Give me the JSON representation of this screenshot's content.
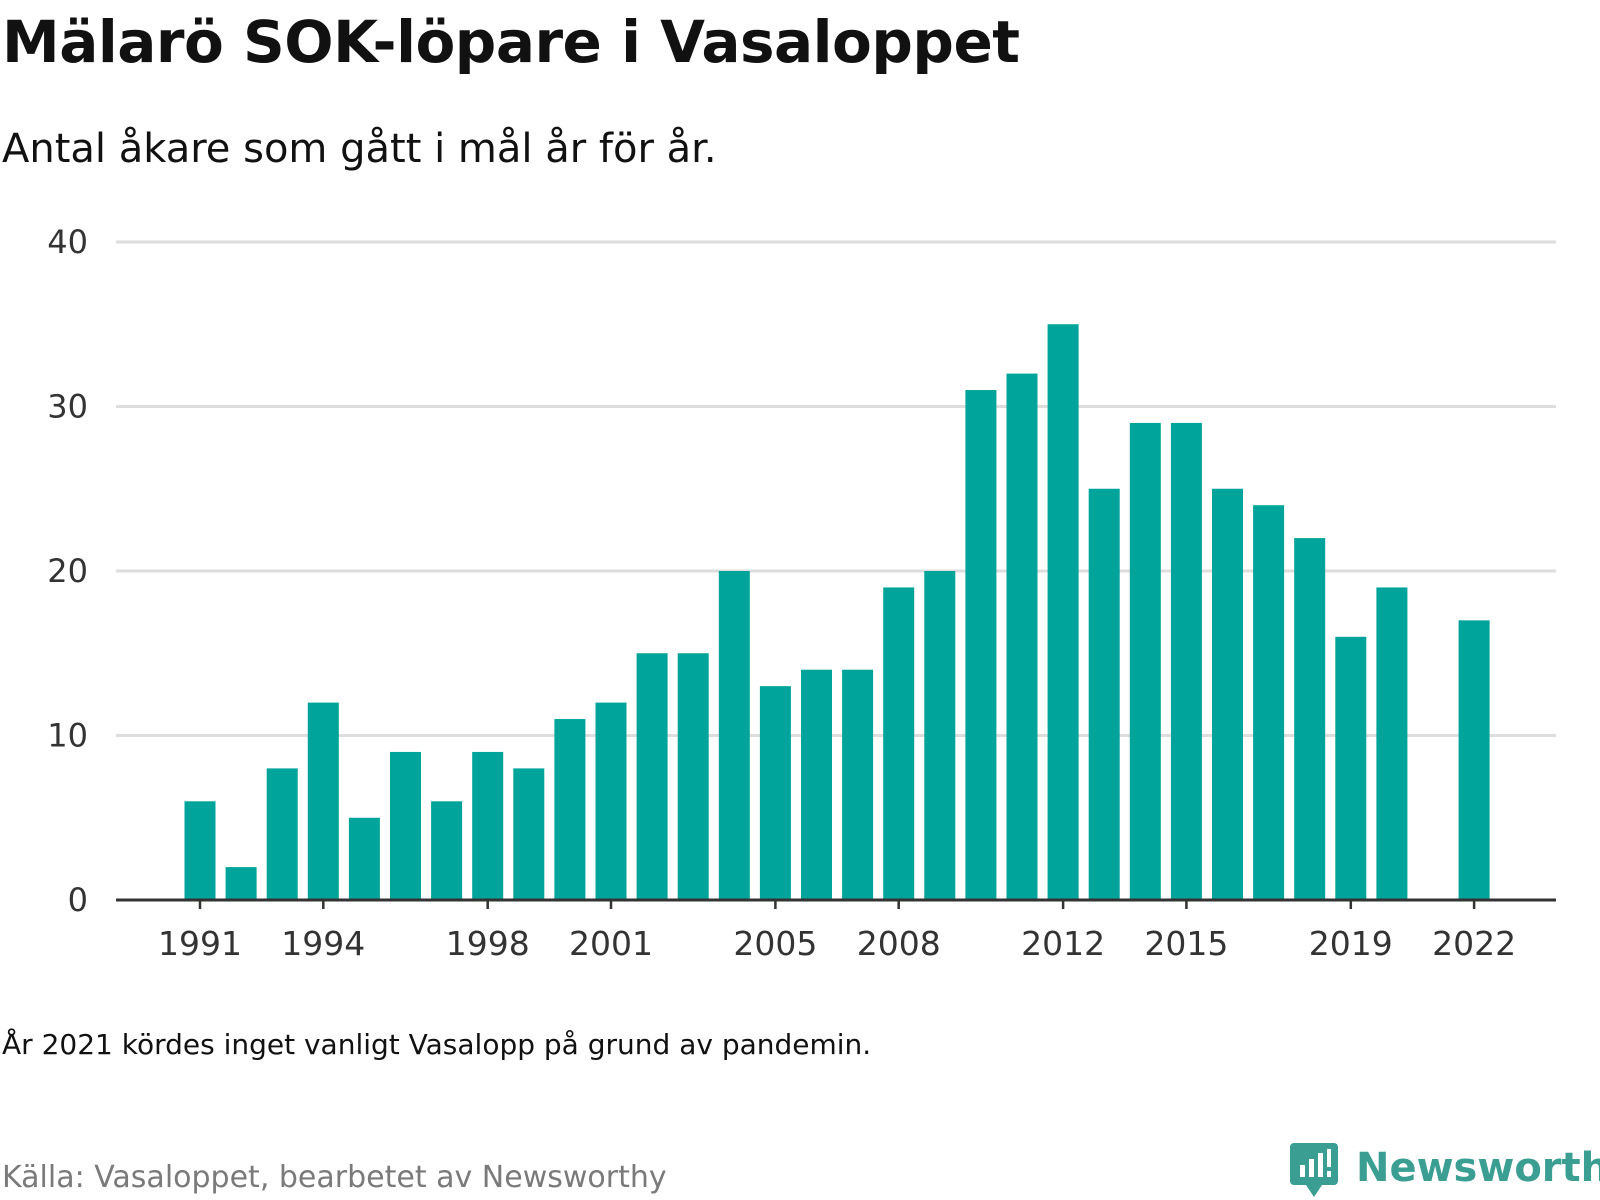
{
  "header": {
    "title": "Mälarö SOK-löpare i Vasaloppet",
    "subtitle": "Antal åkare som gått i mål år för år."
  },
  "footer": {
    "note": "År 2021 kördes inget vanligt Vasalopp på grund av pandemin.",
    "source": "Källa: Vasaloppet, bearbetet av Newsworthy",
    "brand_name": "Newsworthy",
    "brand_icon": "newsworthy-logo-icon"
  },
  "colors": {
    "bar": "#00a49a",
    "grid": "#dddddd",
    "axis": "#333333",
    "brand": "#3a9e93"
  },
  "chart_data": {
    "type": "bar",
    "title": "Mälarö SOK-löpare i Vasaloppet",
    "subtitle": "Antal åkare som gått i mål år för år.",
    "xlabel": "",
    "ylabel": "",
    "categories": [
      1991,
      1992,
      1993,
      1994,
      1995,
      1996,
      1997,
      1998,
      1999,
      2000,
      2001,
      2002,
      2003,
      2004,
      2005,
      2006,
      2007,
      2008,
      2009,
      2010,
      2011,
      2012,
      2013,
      2014,
      2015,
      2016,
      2017,
      2018,
      2019,
      2020,
      2021,
      2022
    ],
    "values": [
      6,
      2,
      8,
      12,
      5,
      9,
      6,
      9,
      8,
      11,
      12,
      15,
      15,
      20,
      13,
      14,
      14,
      19,
      20,
      31,
      32,
      35,
      25,
      29,
      29,
      25,
      24,
      22,
      16,
      19,
      null,
      17
    ],
    "x_tick_labels": [
      "1991",
      "1994",
      "1998",
      "2001",
      "2005",
      "2008",
      "2012",
      "2015",
      "2019",
      "2022"
    ],
    "y_ticks": [
      0,
      10,
      20,
      30,
      40
    ],
    "ylim": [
      0,
      40
    ],
    "grid": true,
    "legend": "none"
  }
}
